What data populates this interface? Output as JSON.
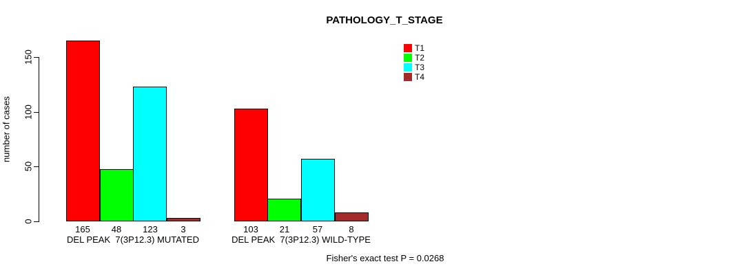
{
  "chart": {
    "title": "PATHOLOGY_T_STAGE",
    "ylabel": "number of cases",
    "footnote": "Fisher's exact test P = 0.0268"
  },
  "chart_data": {
    "type": "bar",
    "title": "PATHOLOGY_T_STAGE",
    "xlabel": "",
    "ylabel": "number of cases",
    "categories": [
      "DEL PEAK  7(3P12.3) MUTATED",
      "DEL PEAK  7(3P12.3) WILD-TYPE"
    ],
    "series": [
      {
        "name": "T1",
        "color": "#FF0000",
        "values": [
          165,
          103
        ]
      },
      {
        "name": "T2",
        "color": "#00FF00",
        "values": [
          48,
          21
        ]
      },
      {
        "name": "T3",
        "color": "#00FFFF",
        "values": [
          123,
          57
        ]
      },
      {
        "name": "T4",
        "color": "#A52A2A",
        "values": [
          3,
          8
        ]
      }
    ],
    "bar_value_labels": [
      [
        "165",
        "48",
        "123",
        "3"
      ],
      [
        "103",
        "21",
        "57",
        "8"
      ]
    ],
    "yticks": [
      0,
      50,
      100,
      150
    ],
    "ylim": [
      0,
      165
    ],
    "grid": false,
    "legend_position": "top-center",
    "annotation": "Fisher's exact test P = 0.0268"
  }
}
